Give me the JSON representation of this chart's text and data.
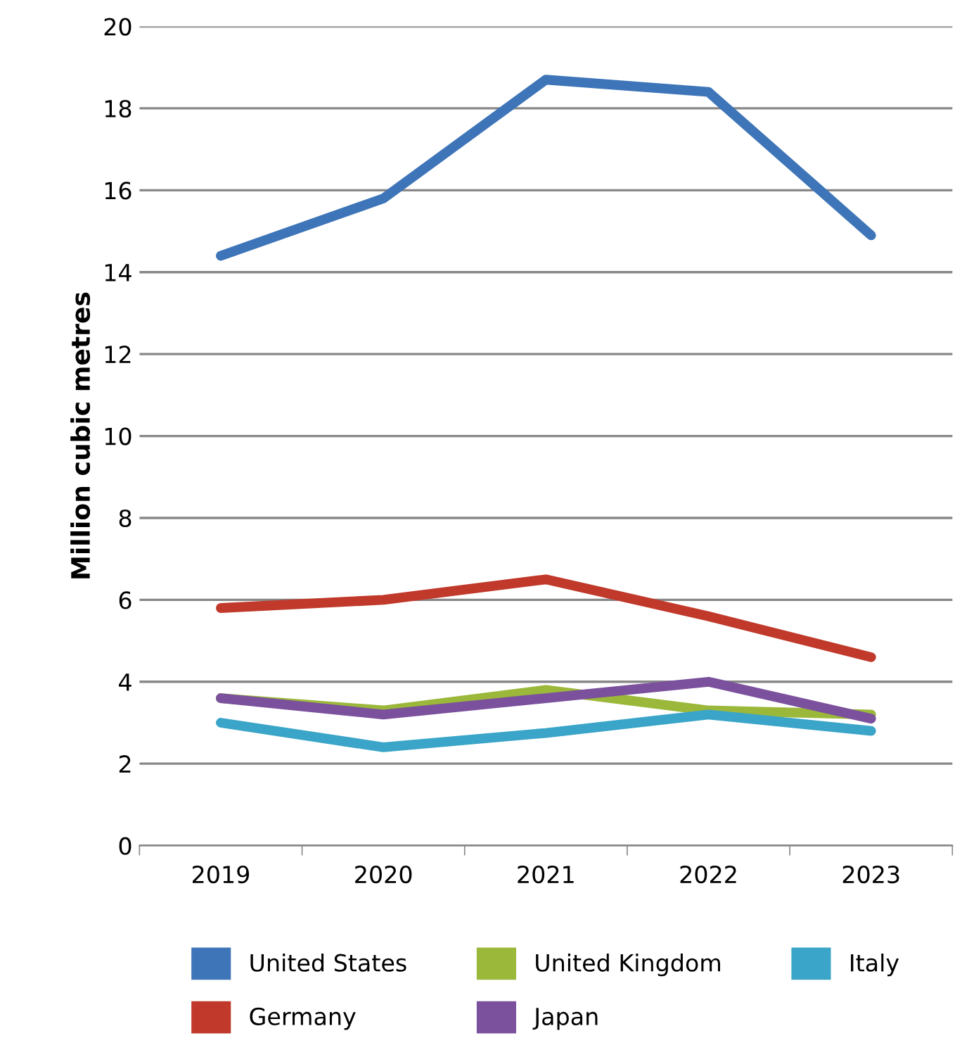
{
  "chart_data": {
    "type": "line",
    "ylabel": "Million cubic metres",
    "categories": [
      "2019",
      "2020",
      "2021",
      "2022",
      "2023"
    ],
    "series": [
      {
        "name": "United States",
        "color": "#3e75b8",
        "values": [
          14.4,
          15.8,
          18.7,
          18.4,
          14.9
        ]
      },
      {
        "name": "Germany",
        "color": "#c0392b",
        "values": [
          5.8,
          6.0,
          6.5,
          5.6,
          4.6
        ]
      },
      {
        "name": "United Kingdom",
        "color": "#9bb83a",
        "values": [
          3.6,
          3.3,
          3.8,
          3.3,
          3.2
        ]
      },
      {
        "name": "Japan",
        "color": "#7b519d",
        "values": [
          3.6,
          3.2,
          3.6,
          4.0,
          3.1
        ]
      },
      {
        "name": "Italy",
        "color": "#3aa5c8",
        "values": [
          3.0,
          2.4,
          2.75,
          3.2,
          2.8
        ]
      }
    ],
    "ylim": [
      0,
      20
    ],
    "yticks": [
      0,
      2,
      4,
      6,
      8,
      10,
      12,
      14,
      16,
      18,
      20
    ],
    "grid": "y",
    "legend": "bottom",
    "marker": "none",
    "line_style": "solid"
  }
}
